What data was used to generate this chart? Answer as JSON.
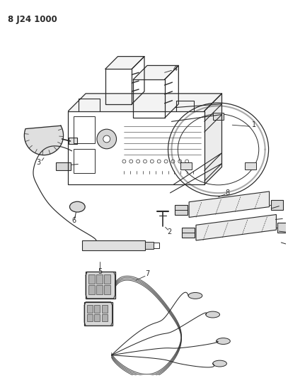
{
  "title": "8 J24 1000",
  "bg_color": "#ffffff",
  "line_color": "#2a2a2a",
  "figsize": [
    4.07,
    5.33
  ],
  "dpi": 100
}
